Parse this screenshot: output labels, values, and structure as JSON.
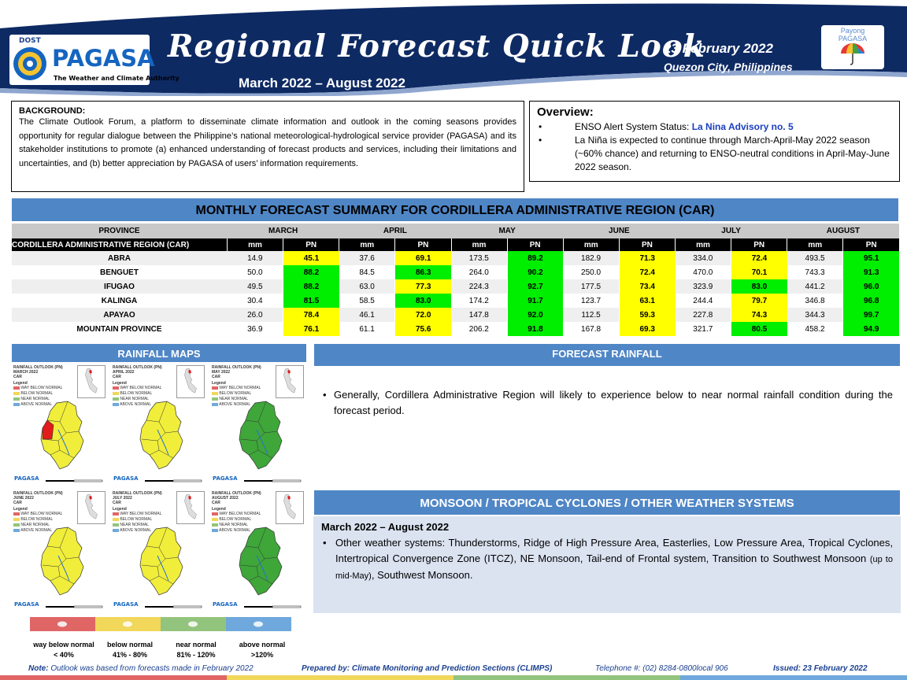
{
  "header": {
    "logo_top": "DOST",
    "logo_name": "PAGASA",
    "logo_tagline": "The Weather and Climate Authority",
    "title": "Regional Forecast Quick Look",
    "period": "March 2022 – August 2022",
    "date": "23 February 2022",
    "location": "Quezon City, Philippines",
    "payong_line1": "Payong",
    "payong_line2": "PAGASA"
  },
  "background": {
    "heading": "BACKGROUND:",
    "text": "The Climate Outlook Forum, a platform to disseminate climate information and outlook in the coming seasons provides opportunity for regular dialogue between the Philippine’s national meteorological-hydrological service provider (PAGASA) and its stakeholder institutions to promote (a) enhanced understanding of forecast products and services, including their limitations and uncertainties, and (b) better appreciation by PAGASA of users’ information requirements."
  },
  "overview": {
    "heading": "Overview:",
    "item1_prefix": "ENSO Alert System Status: ",
    "item1_advisory": "La Nina Advisory no. 5",
    "item2": "La Niña is expected to continue through March-April-May 2022 season (~60% chance) and returning to ENSO-neutral conditions in April-May-June 2022 season."
  },
  "table": {
    "title": "MONTHLY FORECAST SUMMARY FOR CORDILLERA ADMINISTRATIVE REGION (CAR)",
    "province_header": "PROVINCE",
    "region_label": "CORDILLERA ADMINISTRATIVE REGION (CAR)",
    "sub_mm": "mm",
    "sub_pn": "PN",
    "months": [
      "MARCH",
      "APRIL",
      "MAY",
      "JUNE",
      "JULY",
      "AUGUST"
    ],
    "rows": [
      {
        "province": "ABRA",
        "values": [
          [
            "14.9",
            "45.1"
          ],
          [
            "37.6",
            "69.1"
          ],
          [
            "173.5",
            "89.2"
          ],
          [
            "182.9",
            "71.3"
          ],
          [
            "334.0",
            "72.4"
          ],
          [
            "493.5",
            "95.1"
          ]
        ]
      },
      {
        "province": "BENGUET",
        "values": [
          [
            "50.0",
            "88.2"
          ],
          [
            "84.5",
            "86.3"
          ],
          [
            "264.0",
            "90.2"
          ],
          [
            "250.0",
            "72.4"
          ],
          [
            "470.0",
            "70.1"
          ],
          [
            "743.3",
            "91.3"
          ]
        ]
      },
      {
        "province": "IFUGAO",
        "values": [
          [
            "49.5",
            "88.2"
          ],
          [
            "63.0",
            "77.3"
          ],
          [
            "224.3",
            "92.7"
          ],
          [
            "177.5",
            "73.4"
          ],
          [
            "323.9",
            "83.0"
          ],
          [
            "441.2",
            "96.0"
          ]
        ]
      },
      {
        "province": "KALINGA",
        "values": [
          [
            "30.4",
            "81.5"
          ],
          [
            "58.5",
            "83.0"
          ],
          [
            "174.2",
            "91.7"
          ],
          [
            "123.7",
            "63.1"
          ],
          [
            "244.4",
            "79.7"
          ],
          [
            "346.8",
            "96.8"
          ]
        ]
      },
      {
        "province": "APAYAO",
        "values": [
          [
            "26.0",
            "78.4"
          ],
          [
            "46.1",
            "72.0"
          ],
          [
            "147.8",
            "92.0"
          ],
          [
            "112.5",
            "59.3"
          ],
          [
            "227.8",
            "74.3"
          ],
          [
            "344.3",
            "99.7"
          ]
        ]
      },
      {
        "province": "MOUNTAIN PROVINCE",
        "values": [
          [
            "36.9",
            "76.1"
          ],
          [
            "61.1",
            "75.6"
          ],
          [
            "206.2",
            "91.8"
          ],
          [
            "167.8",
            "69.3"
          ],
          [
            "321.7",
            "80.5"
          ],
          [
            "458.2",
            "94.9"
          ]
        ]
      }
    ]
  },
  "rainfall_maps": {
    "heading": "RAINFALL MAPS",
    "maps": [
      {
        "title1": "RAINFALL OUTLOOK (PN)",
        "title2": "MARCH 2022",
        "title3": "CAR",
        "fill": "yellow",
        "red": true
      },
      {
        "title1": "RAINFALL OUTLOOK (PN)",
        "title2": "APRIL 2022",
        "title3": "CAR",
        "fill": "yellow",
        "red": false
      },
      {
        "title1": "RAINFALL OUTLOOK (PN)",
        "title2": "MAY 2022",
        "title3": "CAR",
        "fill": "green",
        "red": false
      },
      {
        "title1": "RAINFALL OUTLOOK (PN)",
        "title2": "JUNE 2022",
        "title3": "CAR",
        "fill": "yellow",
        "red": false
      },
      {
        "title1": "RAINFALL OUTLOOK (PN)",
        "title2": "JULY 2022",
        "title3": "CAR",
        "fill": "yellow",
        "red": false
      },
      {
        "title1": "RAINFALL OUTLOOK (PN)",
        "title2": "AUGUST 2022",
        "title3": "CAR",
        "fill": "green",
        "red": false
      }
    ],
    "legend_heading": "Legend",
    "legend_items": [
      "WAY BELOW NORMAL",
      "BELOW NORMAL",
      "NEAR NORMAL",
      "ABOVE NORMAL"
    ],
    "map_logo": "PAGASA"
  },
  "legend": [
    {
      "label": "way below normal",
      "range": "< 40%",
      "color": "#e06666"
    },
    {
      "label": "below normal",
      "range": "41% - 80%",
      "color": "#f1d75a"
    },
    {
      "label": "near normal",
      "range": "81% - 120%",
      "color": "#93c47d"
    },
    {
      "label": "above normal",
      "range": ">120%",
      "color": "#6fa8dc"
    }
  ],
  "forecast_rainfall": {
    "heading": "FORECAST RAINFALL",
    "text": "Generally, Cordillera Administrative Region will likely to experience below to near normal rainfall condition during the forecast period."
  },
  "monsoon": {
    "heading": "MONSOON / TROPICAL CYCLONES / OTHER WEATHER SYSTEMS",
    "subheading": "March 2022 – August 2022",
    "text_main": "Other weather systems: Thunderstorms,  Ridge of High Pressure Area,  Easterlies, Low Pressure Area, Tropical Cyclones, Intertropical Convergence Zone (ITCZ), NE Monsoon, Tail-end of Frontal system, Transition to Southwest Monsoon ",
    "text_small": "(up to mid-May)",
    "text_end": ", Southwest Monsoon."
  },
  "footer": {
    "note_label": "Note:",
    "note_text": " Outlook was based from forecasts made in February 2022",
    "prepared": "Prepared by: Climate Monitoring and Prediction Sections (CLIMPS)",
    "telephone": "Telephone #: (02) 8284-0800local 906",
    "issued": "Issued: 23 February 2022"
  },
  "colors": {
    "navy": "#0e2a63",
    "section_blue": "#4f86c6",
    "pn_green": "#00ee00",
    "pn_yellow": "#ffff00"
  }
}
